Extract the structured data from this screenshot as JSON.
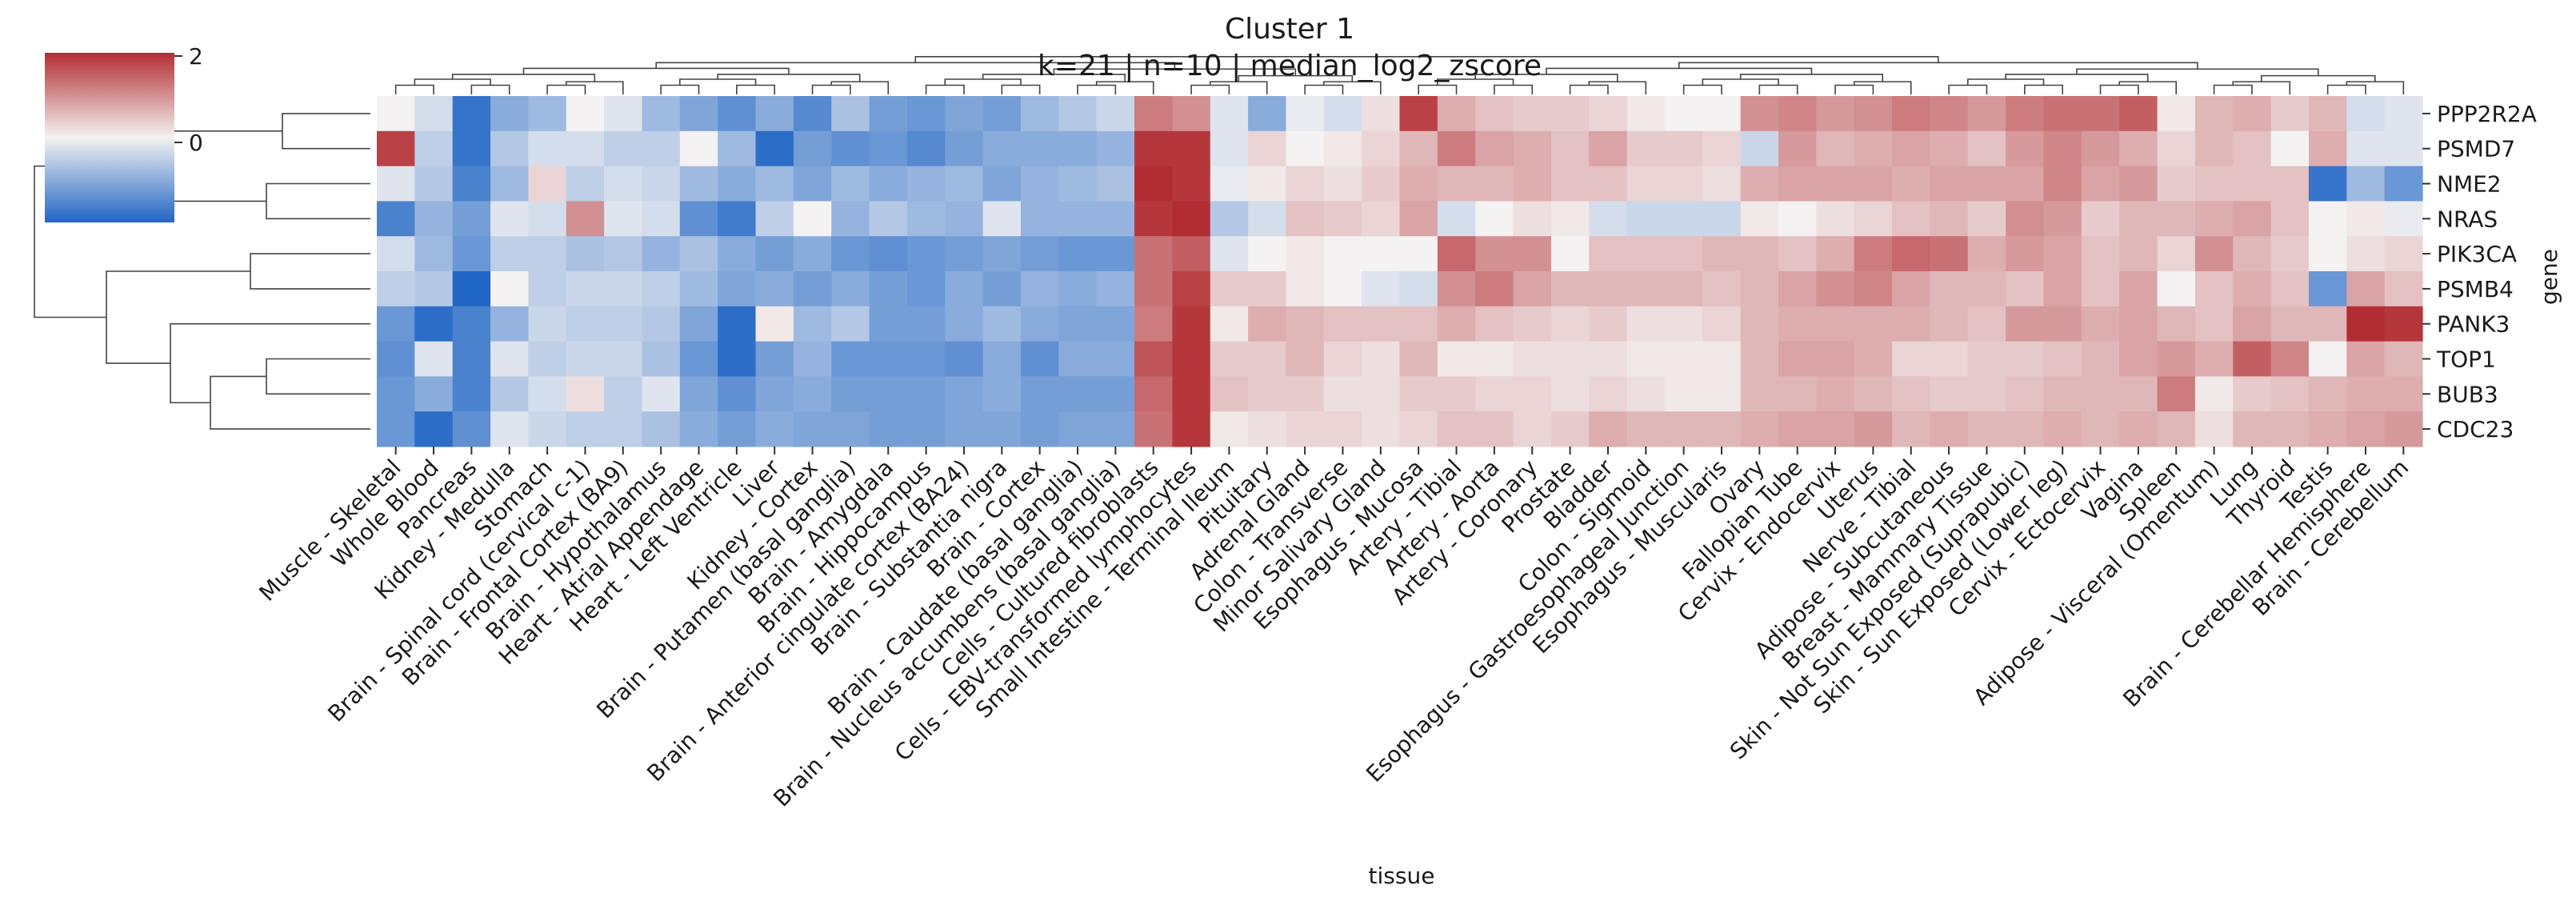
{
  "chart_data": {
    "type": "heatmap",
    "title": "Cluster 1",
    "subtitle": "k=21 | n=10 | median_log2_zscore",
    "xlabel": "tissue",
    "ylabel": "gene",
    "colorbar": {
      "ticks": [
        2,
        0
      ],
      "vmin": -2,
      "vmax": 2,
      "cmap": "vlag",
      "low_color": "#2066c5",
      "mid_color": "#f4f2f2",
      "high_color": "#b22d32"
    },
    "rows": [
      "PPP2R2A",
      "PSMD7",
      "NME2",
      "NRAS",
      "PIK3CA",
      "PSMB4",
      "PANK3",
      "TOP1",
      "BUB3",
      "CDC23"
    ],
    "columns": [
      "Muscle - Skeletal",
      "Whole Blood",
      "Pancreas",
      "Kidney - Medulla",
      "Stomach",
      "Brain - Spinal cord (cervical c-1)",
      "Brain - Frontal Cortex (BA9)",
      "Brain - Hypothalamus",
      "Heart - Atrial Appendage",
      "Heart - Left Ventricle",
      "Liver",
      "Kidney - Cortex",
      "Brain - Putamen (basal ganglia)",
      "Brain - Amygdala",
      "Brain - Hippocampus",
      "Brain - Anterior cingulate cortex (BA24)",
      "Brain - Substantia nigra",
      "Brain - Cortex",
      "Brain - Caudate (basal ganglia)",
      "Brain - Nucleus accumbens (basal ganglia)",
      "Cells - Cultured fibroblasts",
      "Cells - EBV-transformed lymphocytes",
      "Small Intestine - Terminal Ileum",
      "Pituitary",
      "Adrenal Gland",
      "Colon - Transverse",
      "Minor Salivary Gland",
      "Esophagus - Mucosa",
      "Artery - Tibial",
      "Artery - Aorta",
      "Artery - Coronary",
      "Prostate",
      "Bladder",
      "Colon - Sigmoid",
      "Esophagus - Gastroesophageal Junction",
      "Esophagus - Muscularis",
      "Ovary",
      "Fallopian Tube",
      "Cervix - Endocervix",
      "Uterus",
      "Nerve - Tibial",
      "Adipose - Subcutaneous",
      "Breast - Mammary Tissue",
      "Skin - Not Sun Exposed (Suprapubic)",
      "Skin - Sun Exposed (Lower leg)",
      "Cervix - Ectocervix",
      "Vagina",
      "Spleen",
      "Adipose - Visceral (Omentum)",
      "Lung",
      "Thyroid",
      "Testis",
      "Brain - Cerebellar Hemisphere",
      "Brain - Cerebellum"
    ],
    "values": [
      [
        0.0,
        -0.3,
        -1.8,
        -1.0,
        -0.8,
        0.0,
        -0.2,
        -0.8,
        -1.1,
        -1.4,
        -1.0,
        -1.5,
        -0.7,
        -1.2,
        -1.3,
        -1.1,
        -1.2,
        -0.8,
        -0.6,
        -0.4,
        1.2,
        1.0,
        -0.2,
        -1.0,
        -0.1,
        -0.3,
        0.2,
        1.8,
        0.7,
        0.5,
        0.4,
        0.4,
        0.3,
        0.1,
        0.0,
        0.0,
        1.0,
        1.1,
        0.9,
        1.0,
        1.2,
        1.1,
        0.9,
        1.2,
        1.3,
        1.3,
        1.5,
        0.1,
        0.6,
        0.7,
        0.4,
        0.6,
        -0.3,
        -0.2
      ],
      [
        1.8,
        -0.5,
        -1.8,
        -0.6,
        -0.3,
        -0.3,
        -0.5,
        -0.5,
        0.0,
        -0.8,
        -1.9,
        -1.2,
        -1.4,
        -1.3,
        -1.5,
        -1.2,
        -1.0,
        -1.0,
        -1.0,
        -0.9,
        1.9,
        1.9,
        -0.2,
        0.3,
        0.0,
        0.1,
        0.3,
        0.6,
        1.2,
        0.8,
        0.7,
        0.5,
        0.8,
        0.4,
        0.4,
        0.3,
        -0.4,
        0.9,
        0.6,
        0.7,
        0.8,
        0.7,
        0.5,
        0.9,
        1.1,
        0.9,
        0.7,
        0.3,
        0.6,
        0.5,
        0.0,
        0.7,
        -0.2,
        -0.2
      ],
      [
        -0.2,
        -0.6,
        -1.6,
        -0.8,
        0.3,
        -0.5,
        -0.3,
        -0.4,
        -0.8,
        -1.0,
        -0.8,
        -1.1,
        -0.8,
        -1.0,
        -0.9,
        -0.8,
        -1.1,
        -0.9,
        -0.8,
        -0.7,
        2.0,
        1.9,
        -0.1,
        0.1,
        0.3,
        0.2,
        0.4,
        0.7,
        0.6,
        0.6,
        0.7,
        0.5,
        0.5,
        0.3,
        0.3,
        0.2,
        0.7,
        0.8,
        0.8,
        0.8,
        0.7,
        0.8,
        0.8,
        0.8,
        1.1,
        0.8,
        0.9,
        0.4,
        0.5,
        0.5,
        0.5,
        -1.8,
        -0.8,
        -1.3
      ],
      [
        -1.6,
        -0.9,
        -1.2,
        -0.2,
        -0.3,
        1.0,
        -0.2,
        -0.3,
        -1.4,
        -1.7,
        -0.5,
        0.0,
        -0.9,
        -0.6,
        -0.8,
        -0.9,
        -0.2,
        -0.9,
        -0.9,
        -0.9,
        1.9,
        2.0,
        -0.6,
        -0.3,
        0.5,
        0.4,
        0.3,
        0.8,
        -0.3,
        0.0,
        0.2,
        0.1,
        -0.3,
        -0.4,
        -0.4,
        -0.4,
        0.1,
        0.0,
        0.2,
        0.3,
        0.5,
        0.6,
        0.4,
        1.0,
        0.9,
        0.4,
        0.6,
        0.6,
        0.7,
        0.8,
        0.5,
        0.0,
        0.1,
        -0.1
      ],
      [
        -0.3,
        -0.8,
        -1.3,
        -0.5,
        -0.5,
        -0.7,
        -0.6,
        -0.9,
        -0.7,
        -1.0,
        -1.2,
        -1.0,
        -1.3,
        -1.4,
        -1.3,
        -1.2,
        -1.1,
        -1.2,
        -1.3,
        -1.3,
        1.3,
        1.5,
        -0.2,
        0.0,
        0.1,
        0.0,
        0.0,
        0.0,
        1.4,
        1.0,
        1.0,
        0.0,
        0.5,
        0.5,
        0.5,
        0.6,
        0.6,
        0.5,
        0.7,
        1.2,
        1.4,
        1.3,
        0.7,
        0.9,
        0.8,
        0.5,
        0.6,
        0.3,
        1.0,
        0.6,
        0.4,
        0.0,
        0.2,
        0.3
      ],
      [
        -0.5,
        -0.6,
        -2.0,
        0.0,
        -0.5,
        -0.4,
        -0.4,
        -0.5,
        -0.8,
        -1.1,
        -1.0,
        -1.2,
        -1.0,
        -1.2,
        -1.3,
        -1.0,
        -1.2,
        -0.9,
        -1.0,
        -0.9,
        1.3,
        1.8,
        0.4,
        0.4,
        0.1,
        0.0,
        -0.2,
        -0.3,
        1.0,
        1.2,
        0.8,
        0.6,
        0.6,
        0.6,
        0.6,
        0.5,
        0.6,
        0.8,
        1.0,
        1.1,
        0.8,
        0.6,
        0.6,
        0.5,
        0.8,
        0.5,
        0.8,
        0.0,
        0.5,
        0.7,
        0.5,
        -1.3,
        0.8,
        0.5
      ],
      [
        -1.3,
        -1.9,
        -1.6,
        -0.9,
        -0.4,
        -0.5,
        -0.5,
        -0.6,
        -1.1,
        -1.9,
        0.1,
        -0.8,
        -0.6,
        -1.2,
        -1.2,
        -1.0,
        -0.8,
        -1.0,
        -1.1,
        -1.1,
        1.2,
        1.9,
        0.1,
        0.7,
        0.6,
        0.5,
        0.5,
        0.5,
        0.7,
        0.5,
        0.4,
        0.3,
        0.4,
        0.2,
        0.2,
        0.3,
        0.6,
        0.7,
        0.7,
        0.7,
        0.7,
        0.6,
        0.5,
        0.9,
        0.9,
        0.7,
        0.8,
        0.6,
        0.5,
        0.8,
        0.6,
        0.6,
        2.0,
        1.9
      ],
      [
        -1.4,
        -0.2,
        -1.6,
        -0.2,
        -0.5,
        -0.4,
        -0.4,
        -0.7,
        -1.3,
        -1.9,
        -1.2,
        -0.9,
        -1.3,
        -1.3,
        -1.3,
        -1.4,
        -1.0,
        -1.4,
        -1.0,
        -1.0,
        1.6,
        1.9,
        0.4,
        0.4,
        0.6,
        0.3,
        0.2,
        0.6,
        0.1,
        0.1,
        0.2,
        0.2,
        0.2,
        0.1,
        0.1,
        0.1,
        0.6,
        0.8,
        0.8,
        0.7,
        0.3,
        0.3,
        0.4,
        0.4,
        0.5,
        0.6,
        0.8,
        0.9,
        0.7,
        1.5,
        1.1,
        0.0,
        0.8,
        0.6
      ],
      [
        -1.3,
        -1.0,
        -1.6,
        -0.6,
        -0.3,
        0.2,
        -0.5,
        -0.2,
        -1.1,
        -1.4,
        -1.1,
        -1.0,
        -1.2,
        -1.2,
        -1.2,
        -1.1,
        -1.0,
        -1.2,
        -1.2,
        -1.2,
        1.4,
        1.9,
        0.5,
        0.4,
        0.4,
        0.2,
        0.2,
        0.4,
        0.4,
        0.3,
        0.3,
        0.2,
        0.3,
        0.2,
        0.1,
        0.1,
        0.6,
        0.6,
        0.7,
        0.6,
        0.5,
        0.4,
        0.4,
        0.5,
        0.6,
        0.6,
        0.6,
        1.2,
        0.1,
        0.4,
        0.5,
        0.6,
        0.7,
        0.7
      ],
      [
        -1.3,
        -1.9,
        -1.4,
        -0.2,
        -0.4,
        -0.5,
        -0.5,
        -0.7,
        -1.0,
        -1.2,
        -1.0,
        -1.1,
        -1.1,
        -1.2,
        -1.2,
        -1.1,
        -1.1,
        -1.2,
        -1.1,
        -1.1,
        1.3,
        1.9,
        0.1,
        0.2,
        0.3,
        0.3,
        0.2,
        0.3,
        0.5,
        0.5,
        0.3,
        0.4,
        0.7,
        0.6,
        0.6,
        0.6,
        0.7,
        0.8,
        0.8,
        0.9,
        0.6,
        0.7,
        0.6,
        0.6,
        0.7,
        0.6,
        0.7,
        0.6,
        0.2,
        0.6,
        0.6,
        0.7,
        0.8,
        0.9
      ]
    ]
  }
}
